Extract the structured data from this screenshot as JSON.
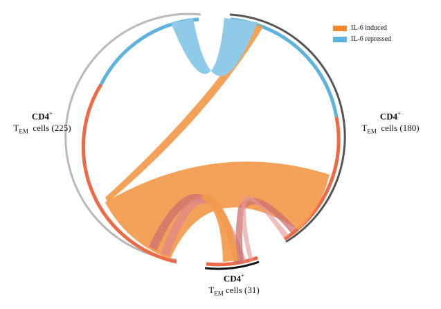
{
  "colors": {
    "induced": "#f39a4c",
    "repressed": "#5eb3dc",
    "induced_track": "#ec6a45",
    "repressed_track": "#5eb3dc",
    "outer_gray": "#b9b9b9",
    "outer_dark": "#555555",
    "outer_black": "#111111",
    "cross_ribbon": "#cf6f6f"
  },
  "legend": {
    "induced_label": "IL-6 induced",
    "repressed_label": "IL-6 repressed"
  },
  "groups": {
    "left": {
      "title": "CD4",
      "sup": "+",
      "sub": "EM",
      "prefix": "T",
      "suffix": "cells (225)"
    },
    "right": {
      "title": "CD4",
      "sup": "+",
      "sub": "EM",
      "prefix": "T",
      "suffix": "cells (180)"
    },
    "bottom": {
      "title": "CD4",
      "sup": "+",
      "sub": "EM",
      "prefix": "T",
      "suffix": "cells (31)"
    }
  }
}
